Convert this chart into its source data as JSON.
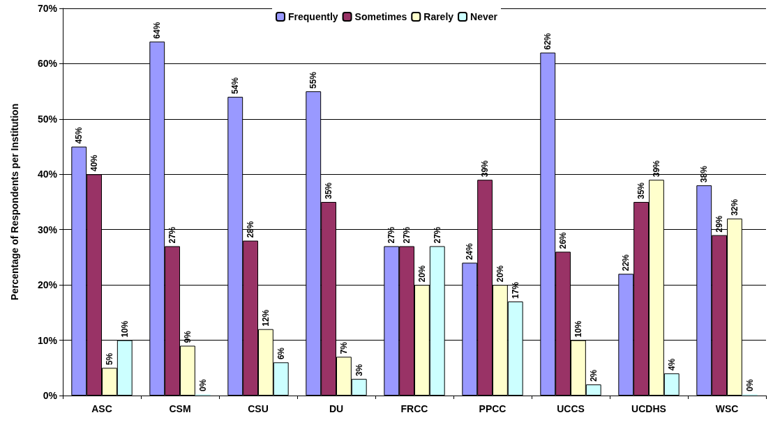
{
  "chart_data": {
    "type": "bar",
    "ylabel": "Percentage of Respondents per Institution",
    "categories": [
      "ASC",
      "CSM",
      "CSU",
      "DU",
      "FRCC",
      "PPCC",
      "UCCS",
      "UCDHS",
      "WSC"
    ],
    "series": [
      {
        "name": "Frequently",
        "color": "#9999ff",
        "values": [
          45,
          64,
          54,
          55,
          27,
          24,
          62,
          22,
          38
        ],
        "value_labels": [
          "45%",
          "64%",
          "54%",
          "55%",
          "27%",
          "24%",
          "62%",
          "22%",
          "38%"
        ]
      },
      {
        "name": "Sometimes",
        "color": "#993366",
        "values": [
          40,
          27,
          28,
          35,
          27,
          39,
          26,
          35,
          29
        ],
        "value_labels": [
          "40%",
          "27%",
          "28%",
          "35%",
          "27%",
          "39%",
          "26%",
          "35%",
          "29%"
        ]
      },
      {
        "name": "Rarely",
        "color": "#ffffcc",
        "values": [
          5,
          9,
          12,
          7,
          20,
          20,
          10,
          39,
          32
        ],
        "value_labels": [
          "5%",
          "9%",
          "12%",
          "7%",
          "20%",
          "20%",
          "10%",
          "39%",
          "32%"
        ]
      },
      {
        "name": "Never",
        "color": "#ccffff",
        "values": [
          10,
          0,
          6,
          3,
          27,
          17,
          2,
          4,
          0
        ],
        "value_labels": [
          "10%",
          "0%",
          "6%",
          "3%",
          "27%",
          "17%",
          "2%",
          "4%",
          "0%"
        ]
      }
    ],
    "ylim": [
      0,
      70
    ],
    "yticks": [
      {
        "value": 0,
        "label": "0%"
      },
      {
        "value": 10,
        "label": "10%"
      },
      {
        "value": 20,
        "label": "20%"
      },
      {
        "value": 30,
        "label": "30%"
      },
      {
        "value": 40,
        "label": "40%"
      },
      {
        "value": 50,
        "label": "50%"
      },
      {
        "value": 60,
        "label": "60%"
      },
      {
        "value": 70,
        "label": "70%"
      }
    ],
    "grid": "y",
    "legend": "top"
  }
}
